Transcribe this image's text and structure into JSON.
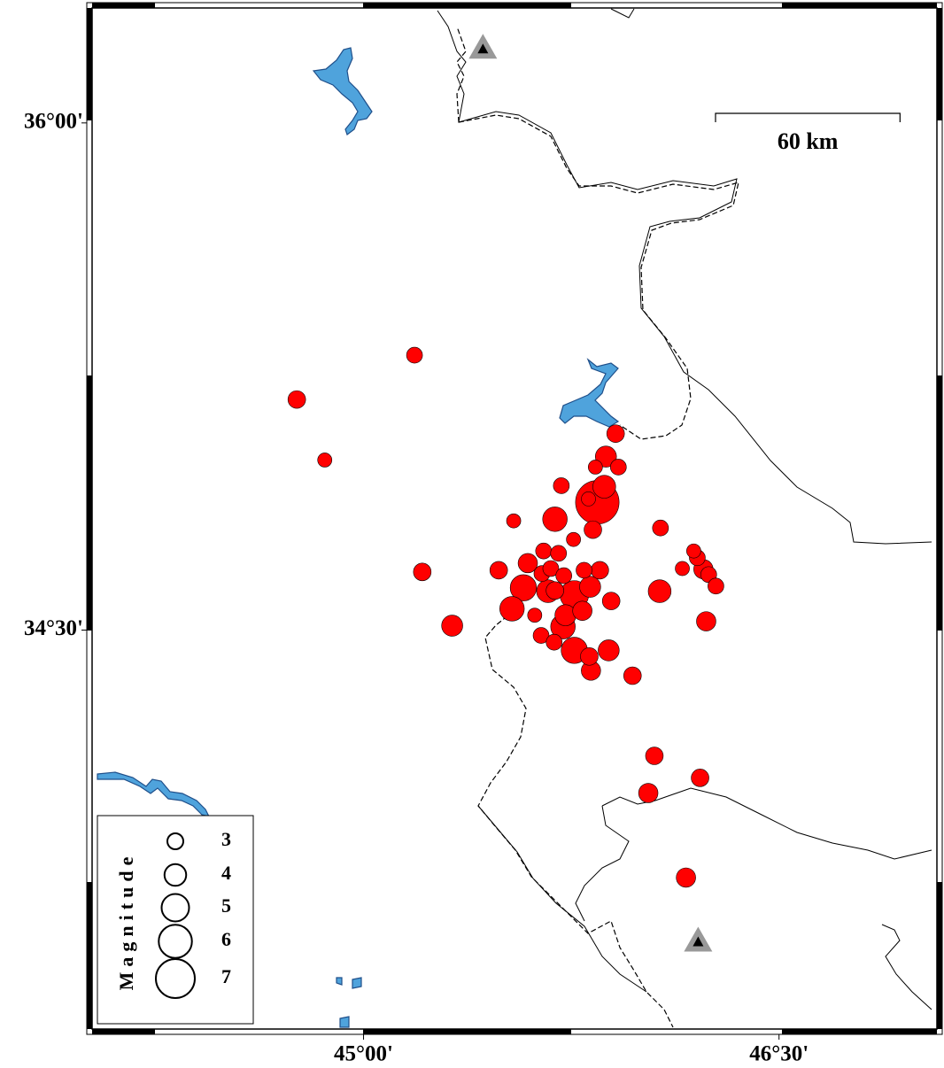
{
  "map": {
    "xlim": [
      44.02,
      47.07
    ],
    "ylim": [
      33.32,
      36.34
    ],
    "xticks": [
      {
        "value": 45,
        "label": "45°00'"
      },
      {
        "value": 46.5,
        "label": "46°30'"
      }
    ],
    "yticks": [
      {
        "value": 36,
        "label": "36°00'"
      },
      {
        "value": 34.5,
        "label": "34°30'"
      }
    ],
    "scale_bar": {
      "value": 60,
      "label": "60 km",
      "lat": 35.98,
      "lon": 46.25
    },
    "event_color": "#ff0000",
    "station_color": "#999999",
    "legend": {
      "title": "Magnitude",
      "magnitudes": [
        3,
        4,
        5,
        6,
        7
      ]
    },
    "stations": [
      {
        "lon": 45.431,
        "lat": 36.219
      },
      {
        "lon": 46.208,
        "lat": 33.578
      }
    ],
    "events": [
      {
        "lon": 45.184,
        "lat": 35.313,
        "mag": 3.0
      },
      {
        "lon": 44.759,
        "lat": 35.182,
        "mag": 3.3
      },
      {
        "lon": 44.86,
        "lat": 35.003,
        "mag": 2.7
      },
      {
        "lon": 45.212,
        "lat": 34.672,
        "mag": 3.3
      },
      {
        "lon": 45.32,
        "lat": 34.513,
        "mag": 3.9
      },
      {
        "lon": 45.542,
        "lat": 34.823,
        "mag": 2.7
      },
      {
        "lon": 45.714,
        "lat": 34.927,
        "mag": 3.0
      },
      {
        "lon": 45.91,
        "lat": 35.081,
        "mag": 3.3
      },
      {
        "lon": 45.875,
        "lat": 35.013,
        "mag": 3.9
      },
      {
        "lon": 45.92,
        "lat": 34.982,
        "mag": 3.0
      },
      {
        "lon": 45.837,
        "lat": 34.982,
        "mag": 2.7
      },
      {
        "lon": 45.869,
        "lat": 34.924,
        "mag": 4.2
      },
      {
        "lon": 45.844,
        "lat": 34.878,
        "mag": 7.8
      },
      {
        "lon": 45.812,
        "lat": 34.888,
        "mag": 2.7
      },
      {
        "lon": 45.691,
        "lat": 34.828,
        "mag": 4.5
      },
      {
        "lon": 45.828,
        "lat": 34.797,
        "mag": 3.3
      },
      {
        "lon": 45.758,
        "lat": 34.768,
        "mag": 2.7
      },
      {
        "lon": 46.072,
        "lat": 34.802,
        "mag": 3.0
      },
      {
        "lon": 45.488,
        "lat": 34.677,
        "mag": 3.3
      },
      {
        "lon": 45.593,
        "lat": 34.698,
        "mag": 3.6
      },
      {
        "lon": 45.65,
        "lat": 34.734,
        "mag": 3.0
      },
      {
        "lon": 45.704,
        "lat": 34.727,
        "mag": 3.0
      },
      {
        "lon": 45.644,
        "lat": 34.667,
        "mag": 3.0
      },
      {
        "lon": 45.676,
        "lat": 34.682,
        "mag": 3.0
      },
      {
        "lon": 45.723,
        "lat": 34.661,
        "mag": 3.0
      },
      {
        "lon": 45.577,
        "lat": 34.625,
        "mag": 4.8
      },
      {
        "lon": 45.691,
        "lat": 34.617,
        "mag": 3.3
      },
      {
        "lon": 45.796,
        "lat": 34.677,
        "mag": 3.0
      },
      {
        "lon": 45.853,
        "lat": 34.677,
        "mag": 3.3
      },
      {
        "lon": 45.536,
        "lat": 34.563,
        "mag": 4.5
      },
      {
        "lon": 45.666,
        "lat": 34.615,
        "mag": 4.2
      },
      {
        "lon": 45.761,
        "lat": 34.604,
        "mag": 5.2
      },
      {
        "lon": 45.818,
        "lat": 34.628,
        "mag": 3.9
      },
      {
        "lon": 45.894,
        "lat": 34.586,
        "mag": 3.3
      },
      {
        "lon": 45.618,
        "lat": 34.544,
        "mag": 2.7
      },
      {
        "lon": 45.729,
        "lat": 34.544,
        "mag": 3.9
      },
      {
        "lon": 45.79,
        "lat": 34.557,
        "mag": 3.6
      },
      {
        "lon": 45.641,
        "lat": 34.484,
        "mag": 3.0
      },
      {
        "lon": 45.688,
        "lat": 34.464,
        "mag": 3.0
      },
      {
        "lon": 45.72,
        "lat": 34.51,
        "mag": 4.5
      },
      {
        "lon": 45.761,
        "lat": 34.44,
        "mag": 4.8
      },
      {
        "lon": 45.815,
        "lat": 34.422,
        "mag": 3.3
      },
      {
        "lon": 45.885,
        "lat": 34.44,
        "mag": 3.9
      },
      {
        "lon": 45.821,
        "lat": 34.38,
        "mag": 3.6
      },
      {
        "lon": 45.971,
        "lat": 34.365,
        "mag": 3.3
      },
      {
        "lon": 46.069,
        "lat": 34.615,
        "mag": 4.2
      },
      {
        "lon": 46.192,
        "lat": 34.734,
        "mag": 2.7
      },
      {
        "lon": 46.205,
        "lat": 34.714,
        "mag": 3.0
      },
      {
        "lon": 46.151,
        "lat": 34.682,
        "mag": 2.7
      },
      {
        "lon": 46.227,
        "lat": 34.68,
        "mag": 3.6
      },
      {
        "lon": 46.246,
        "lat": 34.664,
        "mag": 3.0
      },
      {
        "lon": 46.272,
        "lat": 34.63,
        "mag": 3.0
      },
      {
        "lon": 46.237,
        "lat": 34.526,
        "mag": 3.6
      },
      {
        "lon": 46.05,
        "lat": 34.128,
        "mag": 3.3
      },
      {
        "lon": 46.215,
        "lat": 34.063,
        "mag": 3.3
      },
      {
        "lon": 46.028,
        "lat": 34.018,
        "mag": 3.6
      },
      {
        "lon": 46.164,
        "lat": 33.768,
        "mag": 3.6
      }
    ]
  }
}
